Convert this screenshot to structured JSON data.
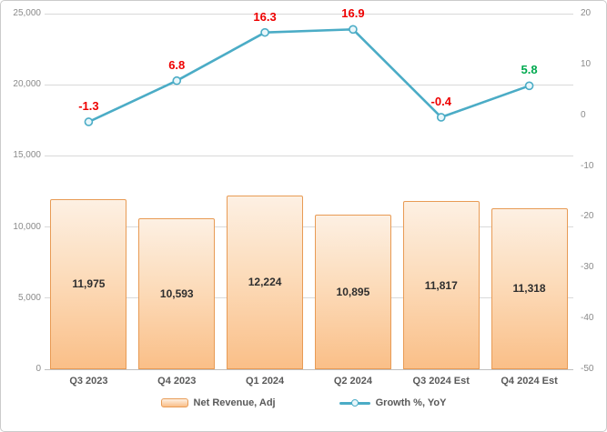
{
  "chart_data": {
    "type": "combo",
    "categories": [
      "Q3 2023",
      "Q4 2023",
      "Q1 2024",
      "Q2 2024",
      "Q3 2024 Est",
      "Q4 2024 Est"
    ],
    "series": [
      {
        "name": "Net Revenue, Adj",
        "type": "bar",
        "axis": "left",
        "values": [
          11975,
          10593,
          12224,
          10895,
          11817,
          11318
        ],
        "labels": [
          "11,975",
          "10,593",
          "12,224",
          "10,895",
          "11,817",
          "11,318"
        ]
      },
      {
        "name": "Growth %, YoY",
        "type": "line",
        "axis": "right",
        "values": [
          -1.3,
          6.8,
          16.3,
          16.9,
          -0.4,
          5.8
        ],
        "labels": [
          "-1.3",
          "6.8",
          "16.3",
          "16.9",
          "-0.4",
          "5.8"
        ],
        "label_colors": [
          "#ee0000",
          "#ee0000",
          "#ee0000",
          "#ee0000",
          "#ee0000",
          "#00a94f"
        ]
      }
    ],
    "left_axis": {
      "min": 0,
      "max": 25000,
      "step": 5000,
      "tick_labels": [
        "0",
        "5,000",
        "10,000",
        "15,000",
        "20,000",
        "25,000"
      ]
    },
    "right_axis": {
      "min": -50,
      "max": 20,
      "step": 10,
      "tick_labels": [
        "-50",
        "-40",
        "-30",
        "-20",
        "-10",
        "0",
        "10",
        "20"
      ]
    },
    "legend": [
      {
        "label": "Net Revenue, Adj",
        "swatch": "bar"
      },
      {
        "label": "Growth %, YoY",
        "swatch": "line"
      }
    ],
    "layout_hints": {
      "grid": "horizontal-only",
      "legend_position": "bottom-center",
      "title": ""
    },
    "colors": {
      "line": "#4bacc6",
      "marker_fill": "#e9f7fb",
      "bar_fill_top": "#fdf0e3",
      "bar_fill_bottom": "#fabf88",
      "bar_border": "#e89b55",
      "grid": "#d9d9d9",
      "axis_text": "#8a8a8a",
      "category_text": "#595959",
      "bar_value_text": "#2e2e2e",
      "label_negative": "#ee0000",
      "label_positive_highlight": "#00a94f"
    }
  }
}
